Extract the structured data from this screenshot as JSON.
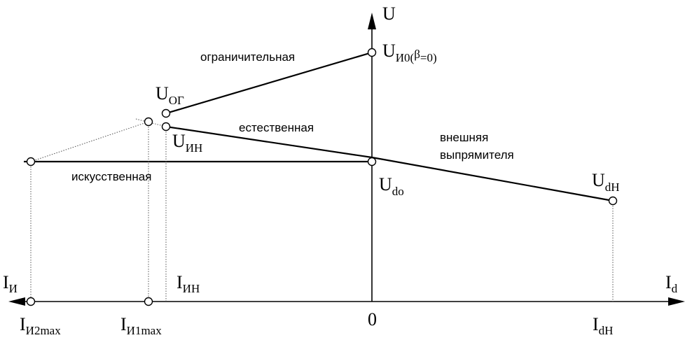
{
  "axes": {
    "u_axis": "U",
    "id_axis": "I",
    "id_axis_sub": "d",
    "ii_axis": "I",
    "ii_axis_sub": "И",
    "origin": "0"
  },
  "points": {
    "u_i0_main": "U",
    "u_i0_sub": "И0(",
    "u_i0_beta": "β",
    "u_i0_tail": "=0)",
    "u_og_main": "U",
    "u_og_sub": "ОГ",
    "u_in_main": "U",
    "u_in_sub": "ИН",
    "u_do_main": "U",
    "u_do_sub": "do",
    "u_dh_main": "U",
    "u_dh_sub": "dH"
  },
  "axis_ticks": {
    "i_in_main": "I",
    "i_in_sub": "ИН",
    "i_i1max_main": "I",
    "i_i1max_sub": "И1max",
    "i_i2max_main": "I",
    "i_i2max_sub": "И2max",
    "i_dh_main": "I",
    "i_dh_sub": "dH"
  },
  "curve_labels": {
    "limiting": "ограничительная",
    "natural": "естественная",
    "artificial": "искусственная",
    "external_line1": "внешняя",
    "external_line2": "выпрямителя"
  }
}
